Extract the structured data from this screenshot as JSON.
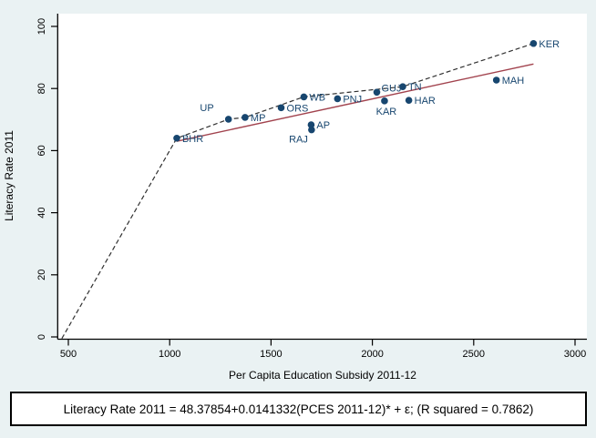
{
  "figure": {
    "background_color": "#eaf2f3",
    "plot_background": "#ffffff"
  },
  "chart_data": {
    "type": "scatter",
    "title": "",
    "xlabel": "Per Capita Education Subsidy 2011-12",
    "ylabel": "Literacy Rate 2011",
    "xlim": [
      450,
      3060
    ],
    "ylim": [
      0,
      104
    ],
    "x_ticks": [
      500,
      1000,
      1500,
      2000,
      2500,
      3000
    ],
    "y_ticks": [
      0,
      20,
      40,
      60,
      80,
      100
    ],
    "grid": false,
    "legend": false,
    "point_color": "#17466f",
    "points": [
      {
        "label": "BHR",
        "x": 1035,
        "y": 64.0,
        "label_side": "right"
      },
      {
        "label": "UP",
        "x": 1290,
        "y": 70.1,
        "label_side": "above-left"
      },
      {
        "label": "MP",
        "x": 1372,
        "y": 70.7,
        "label_side": "right"
      },
      {
        "label": "ORS",
        "x": 1550,
        "y": 73.8,
        "label_side": "right"
      },
      {
        "label": "WB",
        "x": 1662,
        "y": 77.3,
        "label_side": "right"
      },
      {
        "label": "AP",
        "x": 1698,
        "y": 68.3,
        "label_side": "right"
      },
      {
        "label": "RAJ",
        "x": 1700,
        "y": 66.7,
        "label_side": "below-left"
      },
      {
        "label": "PNJ",
        "x": 1828,
        "y": 76.7,
        "label_side": "right"
      },
      {
        "label": "GUJ",
        "x": 2022,
        "y": 78.8,
        "label_side": "right-up"
      },
      {
        "label": "KAR",
        "x": 2060,
        "y": 76.0,
        "label_side": "below"
      },
      {
        "label": "TN",
        "x": 2150,
        "y": 80.6,
        "label_side": "right"
      },
      {
        "label": "HAR",
        "x": 2180,
        "y": 76.2,
        "label_side": "right"
      },
      {
        "label": "MAH",
        "x": 2612,
        "y": 82.7,
        "label_side": "right"
      },
      {
        "label": "KER",
        "x": 2795,
        "y": 94.5,
        "label_side": "right"
      }
    ],
    "fit_line": {
      "style": "solid",
      "color": "#a2434e",
      "x1": 1035,
      "y1": 63.0,
      "x2": 2795,
      "y2": 87.9,
      "equation_intercept": 48.37854,
      "equation_slope": 0.0141332,
      "r_squared": 0.7862
    },
    "dashed_line": {
      "style": "dashed",
      "color": "#303030",
      "points": [
        [
          468,
          -0.5
        ],
        [
          1035,
          64.0
        ],
        [
          1290,
          70.1
        ],
        [
          1372,
          70.7
        ],
        [
          1662,
          77.3
        ],
        [
          2150,
          80.6
        ],
        [
          2795,
          94.5
        ]
      ]
    },
    "caption": "Literacy Rate 2011 = 48.37854+0.0141332(PCES 2011-12)* + ε; (R squared = 0.7862)"
  }
}
